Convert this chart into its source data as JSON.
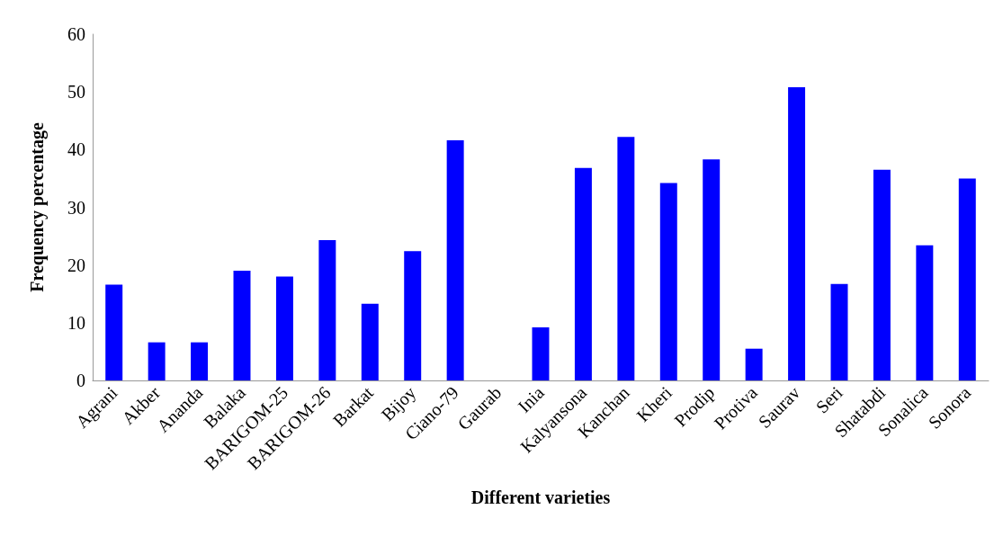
{
  "chart_data": {
    "type": "bar",
    "xlabel": "Different varieties",
    "ylabel": "Frequency percentage",
    "categories": [
      "Agrani",
      "Akber",
      "Ananda",
      "Balaka",
      "BARIGOM-25",
      "BARIGOM-26",
      "Barkat",
      "Bijoy",
      "Ciano-79",
      "Gaurab",
      "Inia",
      "Kalyansona",
      "Kanchan",
      "Kheri",
      "Prodip",
      "Protiva",
      "Saurav",
      "Seri",
      "Shatabdi",
      "Sonalica",
      "Sonora"
    ],
    "values": [
      16.6,
      6.6,
      6.6,
      19.0,
      18.0,
      24.3,
      13.3,
      22.4,
      41.6,
      0,
      9.2,
      36.8,
      42.2,
      34.2,
      38.3,
      5.5,
      50.8,
      16.7,
      36.5,
      23.4,
      35.0
    ],
    "color": "#0000ff",
    "ylim": [
      0,
      60
    ],
    "yticks": [
      0,
      10,
      20,
      30,
      40,
      50,
      60
    ],
    "grid": false
  }
}
